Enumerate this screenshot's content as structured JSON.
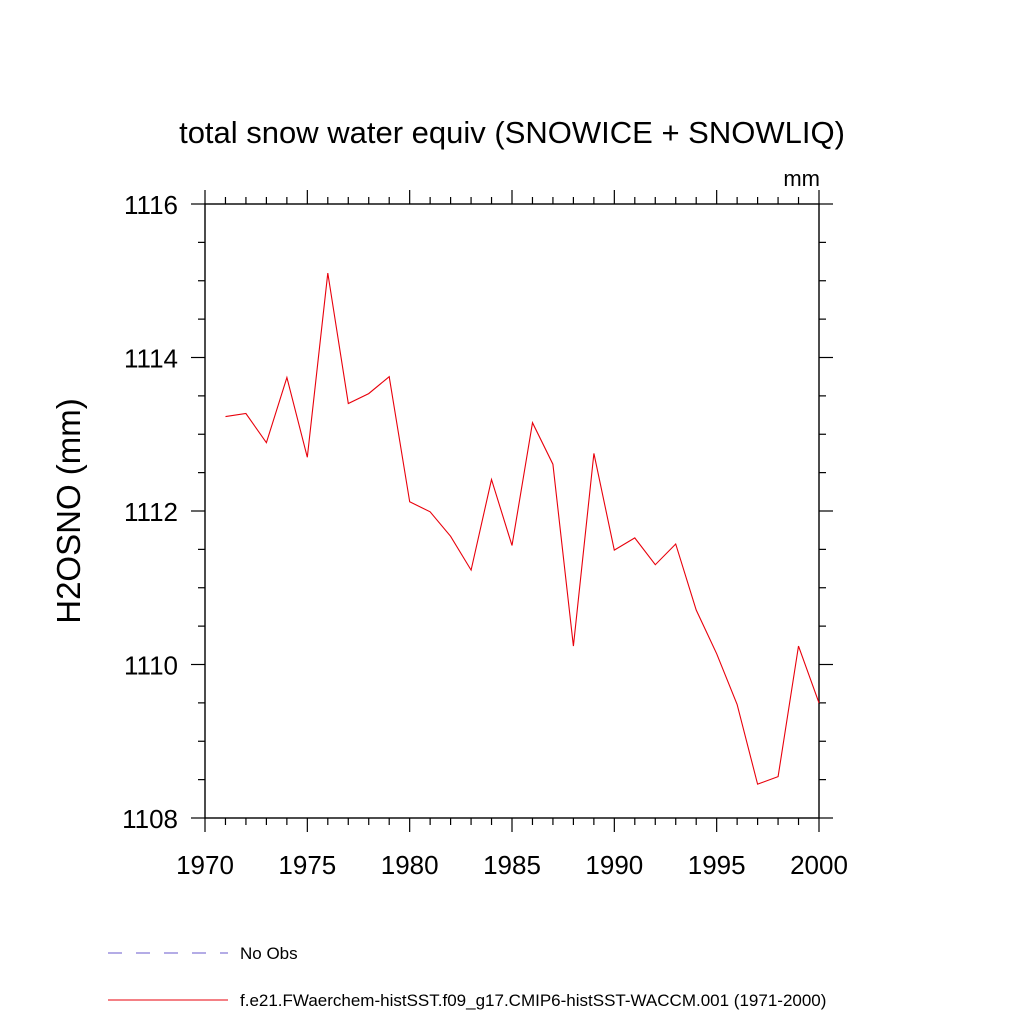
{
  "chart_data": {
    "type": "line",
    "title": "total snow water equiv (SNOWICE + SNOWLIQ)",
    "units_label": "mm",
    "ylabel": "H2OSNO  (mm)",
    "xlabel": "",
    "xlim": [
      1970,
      2000
    ],
    "ylim": [
      1108,
      1116
    ],
    "x_ticks": [
      1970,
      1975,
      1980,
      1985,
      1990,
      1995,
      2000
    ],
    "y_ticks": [
      1108,
      1110,
      1112,
      1114,
      1116
    ],
    "grid": false,
    "legend_placement": "bottom",
    "legend": [
      {
        "label": "No Obs",
        "style": "dashed",
        "color": "#6a5acd"
      },
      {
        "label": "f.e21.FWaerchem-histSST.f09_g17.CMIP6-histSST-WACCM.001 (1971-2000)",
        "style": "solid",
        "color": "#e8000b"
      }
    ],
    "series": [
      {
        "name": "f.e21.FWaerchem-histSST.f09_g17.CMIP6-histSST-WACCM.001 (1971-2000)",
        "color": "#e8000b",
        "x": [
          1971,
          1972,
          1973,
          1974,
          1975,
          1976,
          1977,
          1978,
          1979,
          1980,
          1981,
          1982,
          1983,
          1984,
          1985,
          1986,
          1987,
          1988,
          1989,
          1990,
          1991,
          1992,
          1993,
          1994,
          1995,
          1996,
          1997,
          1998,
          1999,
          2000
        ],
        "values": [
          1113.23,
          1113.27,
          1112.89,
          1113.74,
          1112.7,
          1115.1,
          1113.4,
          1113.53,
          1113.75,
          1112.12,
          1111.99,
          1111.67,
          1111.23,
          1112.41,
          1111.55,
          1113.15,
          1112.61,
          1110.24,
          1112.75,
          1111.49,
          1111.65,
          1111.3,
          1111.57,
          1110.71,
          1110.14,
          1109.48,
          1108.44,
          1108.54,
          1110.24,
          1109.5
        ]
      }
    ]
  }
}
